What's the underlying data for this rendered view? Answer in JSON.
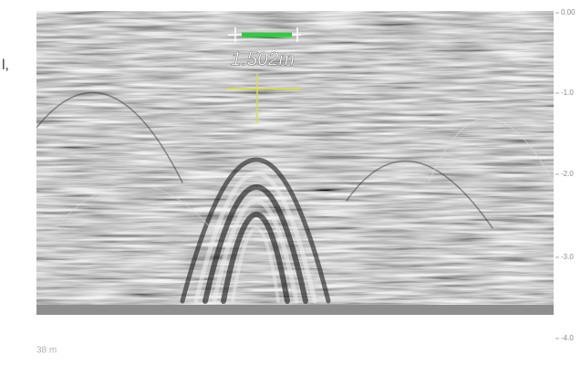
{
  "left_fragment": "l,",
  "measurement": "1.502m",
  "depth_axis": [
    "0.00",
    "-1.0",
    "-2.0",
    "-3.0",
    "-4.0"
  ],
  "distance_label": "38 m"
}
